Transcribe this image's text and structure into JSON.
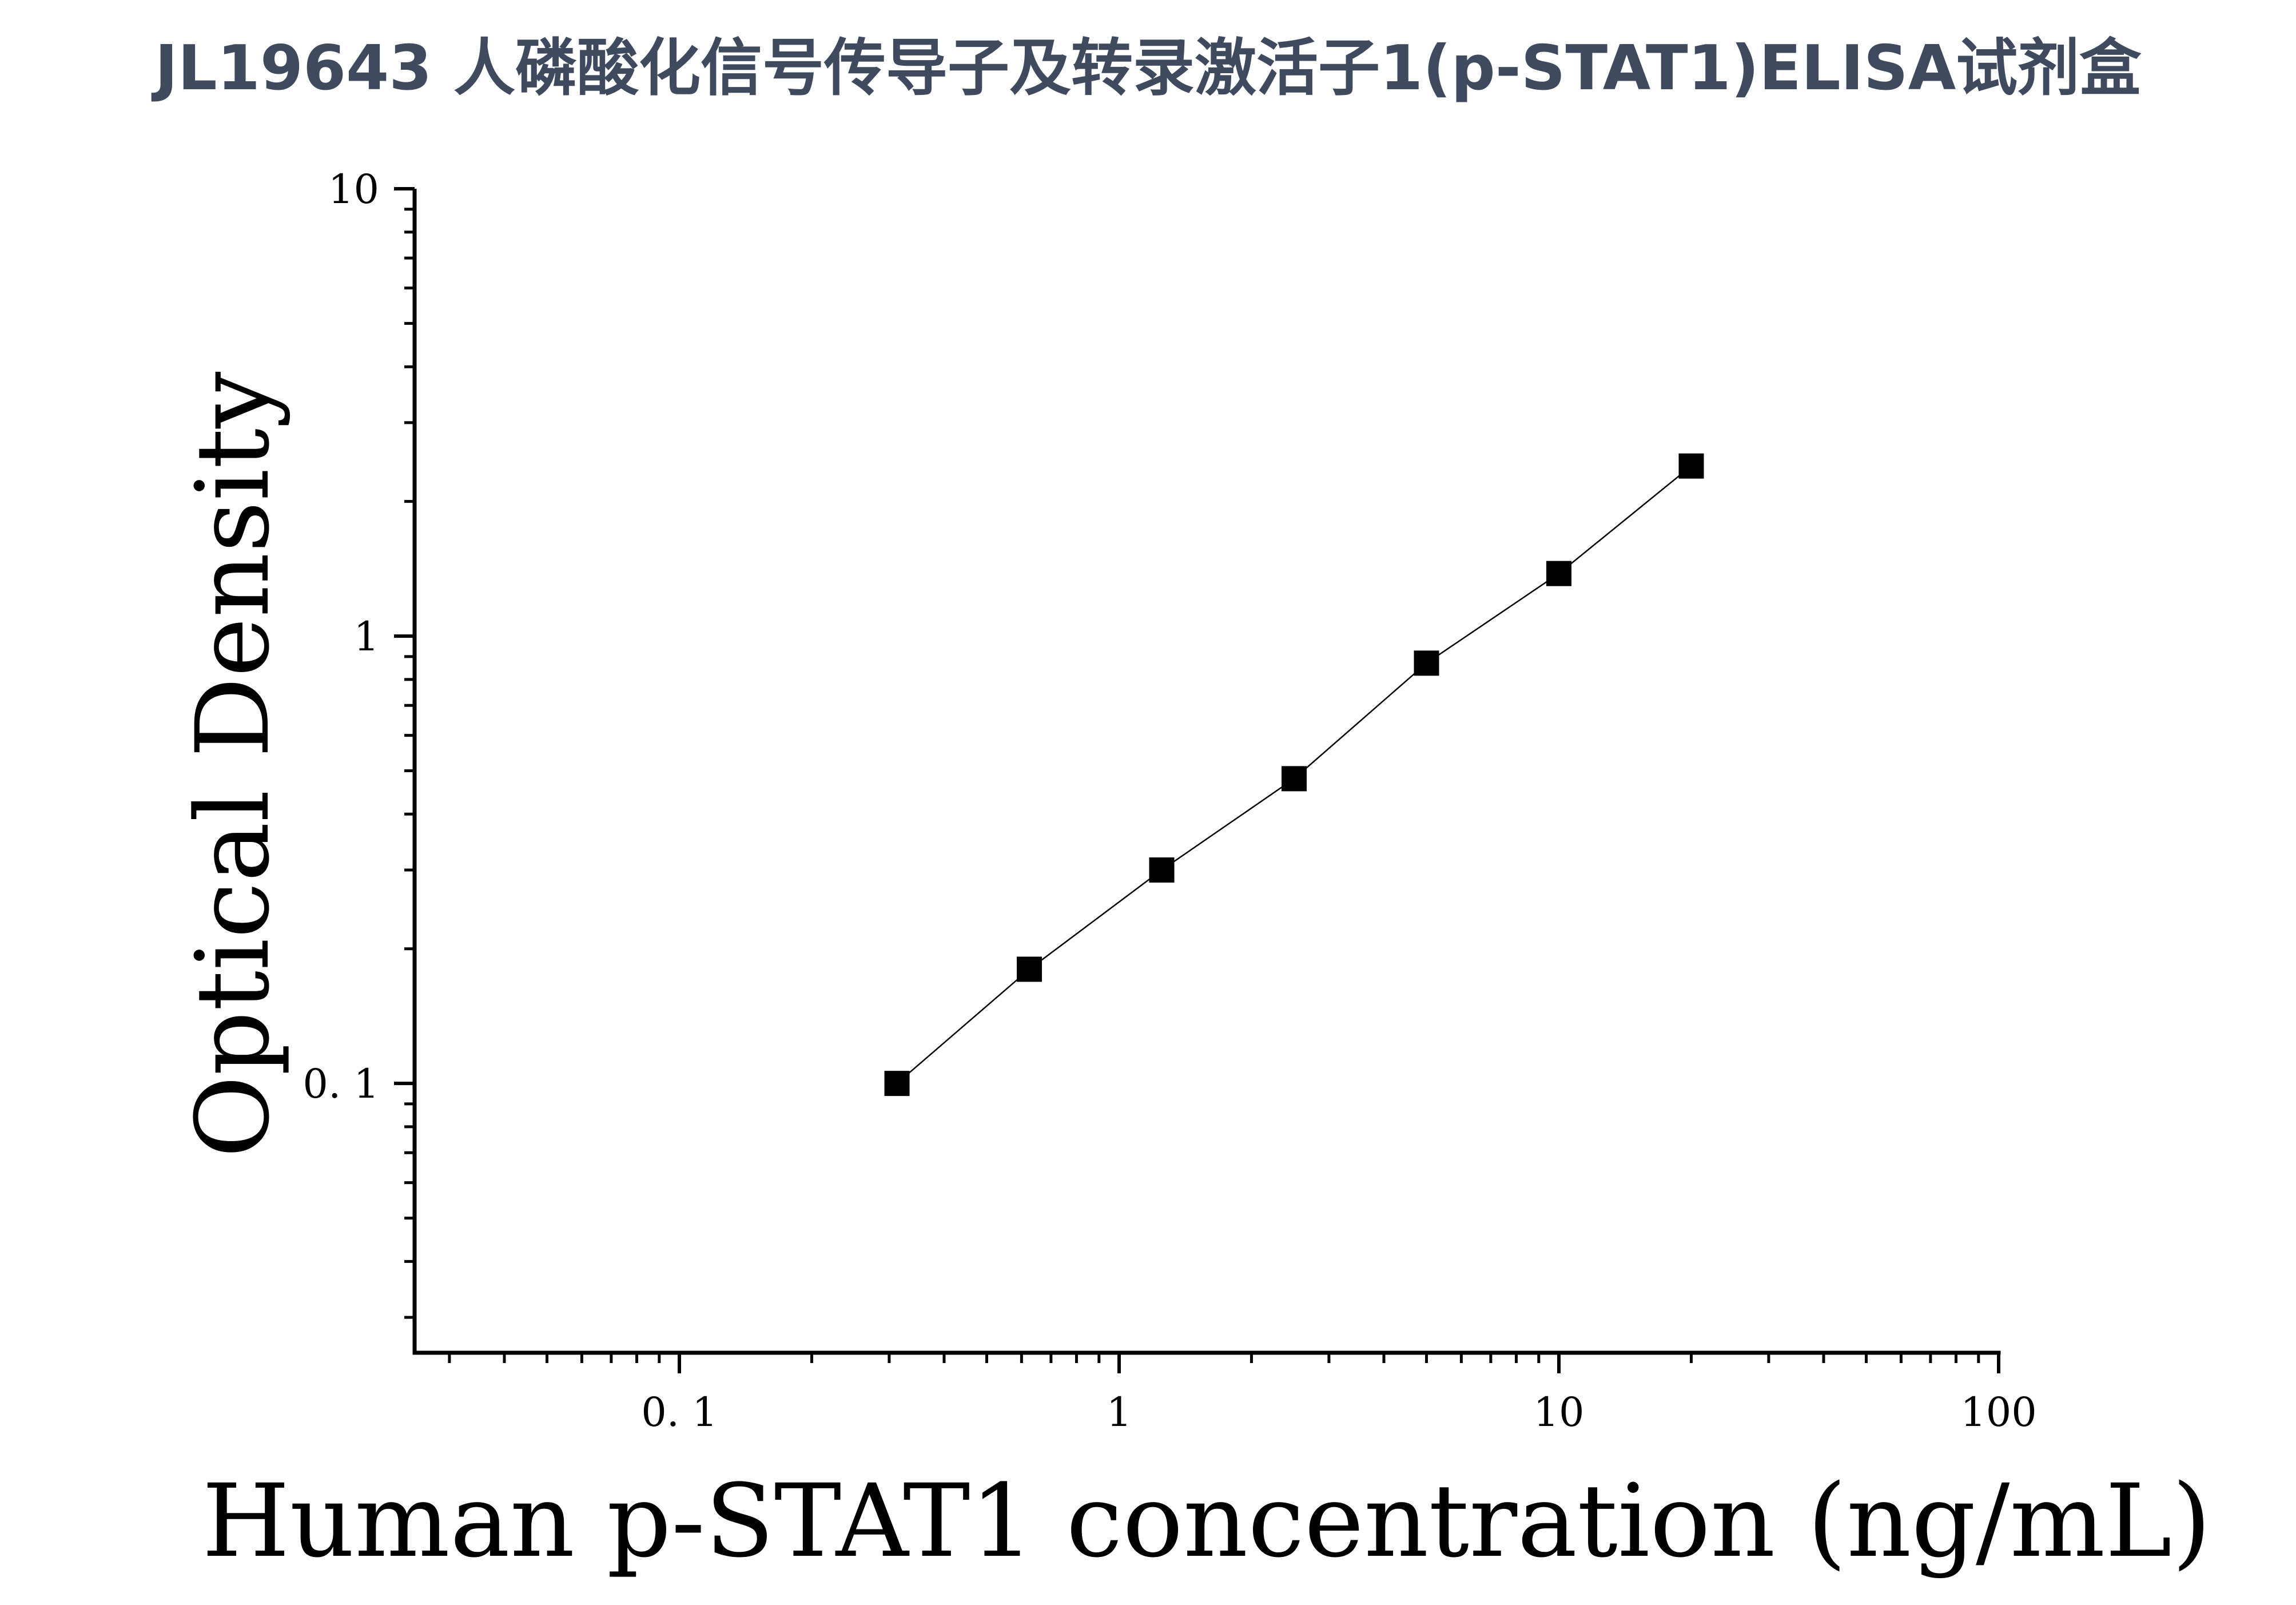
{
  "page": {
    "title": "JL19643 人磷酸化信号传导子及转录激活子1(p-STAT1)ELISA试剂盒"
  },
  "chart_data": {
    "type": "scatter",
    "xlabel": "Human p-STAT1 concentration (ng/mL)",
    "ylabel": "Optical Density",
    "x_scale": "log",
    "y_scale": "log",
    "xlim": [
      0.025,
      100
    ],
    "ylim": [
      0.025,
      10
    ],
    "x_ticks": [
      {
        "value": 0.1,
        "label": "0. 1"
      },
      {
        "value": 1,
        "label": "1"
      },
      {
        "value": 10,
        "label": "10"
      },
      {
        "value": 100,
        "label": "100"
      }
    ],
    "y_ticks": [
      {
        "value": 0.1,
        "label": "0. 1"
      },
      {
        "value": 1,
        "label": "1"
      },
      {
        "value": 10,
        "label": "10"
      }
    ],
    "series": [
      {
        "marker": "square",
        "color": "#000000",
        "x": [
          0.3125,
          0.625,
          1.25,
          2.5,
          5,
          10,
          20
        ],
        "y": [
          0.1,
          0.18,
          0.3,
          0.48,
          0.87,
          1.38,
          2.4
        ]
      }
    ],
    "fit_line": true,
    "grid": false
  }
}
